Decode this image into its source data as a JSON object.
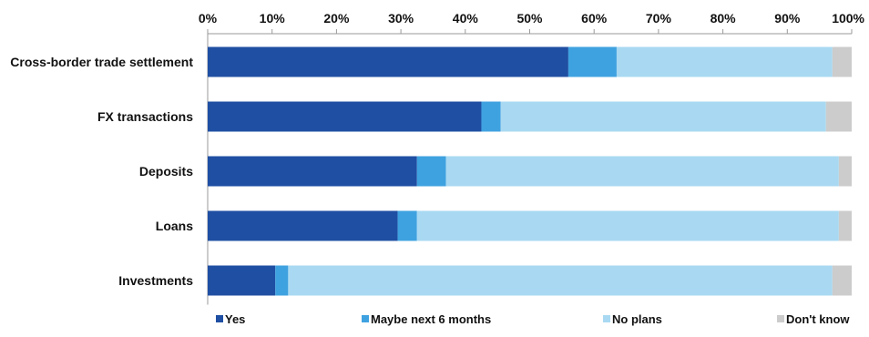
{
  "chart_data": {
    "type": "bar",
    "orientation": "horizontal",
    "stacked": true,
    "percent_stacked": true,
    "categories": [
      "Cross-border trade settlement",
      "FX transactions",
      "Deposits",
      "Loans",
      "Investments"
    ],
    "series": [
      {
        "name": "Yes",
        "color": "#1f4fa3",
        "values": [
          56,
          42.5,
          32.5,
          29.5,
          10.5
        ]
      },
      {
        "name": "Maybe next 6 months",
        "color": "#3fa2e0",
        "values": [
          7.5,
          3,
          4.5,
          3,
          2
        ]
      },
      {
        "name": "No plans",
        "color": "#a9d9f2",
        "values": [
          33.5,
          50.5,
          61,
          65.5,
          84.5
        ]
      },
      {
        "name": "Don't know",
        "color": "#cccccc",
        "values": [
          3,
          4,
          2,
          2,
          3
        ]
      }
    ],
    "x_ticks": [
      "0%",
      "10%",
      "20%",
      "30%",
      "40%",
      "50%",
      "60%",
      "70%",
      "80%",
      "90%",
      "100%"
    ],
    "xlim": [
      0,
      100
    ],
    "x_axis_position": "top",
    "grid": false,
    "legend_position": "bottom",
    "title": "",
    "xlabel": "",
    "ylabel": ""
  }
}
